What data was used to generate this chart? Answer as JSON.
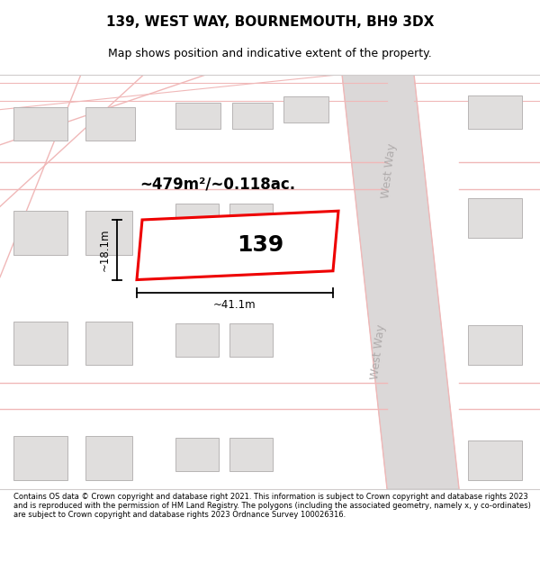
{
  "title": "139, WEST WAY, BOURNEMOUTH, BH9 3DX",
  "subtitle": "Map shows position and indicative extent of the property.",
  "footer": "Contains OS data © Crown copyright and database right 2021. This information is subject to Crown copyright and database rights 2023 and is reproduced with the permission of HM Land Registry. The polygons (including the associated geometry, namely x, y co-ordinates) are subject to Crown copyright and database rights 2023 Ordnance Survey 100026316.",
  "map_bg": "#f2f0f0",
  "road_color": "#f0b8b8",
  "building_fill": "#e0dedd",
  "building_border": "#b8b5b5",
  "target_fill": "#ffffff",
  "target_border": "#ee0000",
  "target_label": "139",
  "area_text": "~479m²/~0.118ac.",
  "width_text": "~41.1m",
  "height_text": "~18.1m",
  "street_label": "West Way",
  "road_band_fill": "#dbd8d8",
  "road_band_edge": "#c8c4c4"
}
